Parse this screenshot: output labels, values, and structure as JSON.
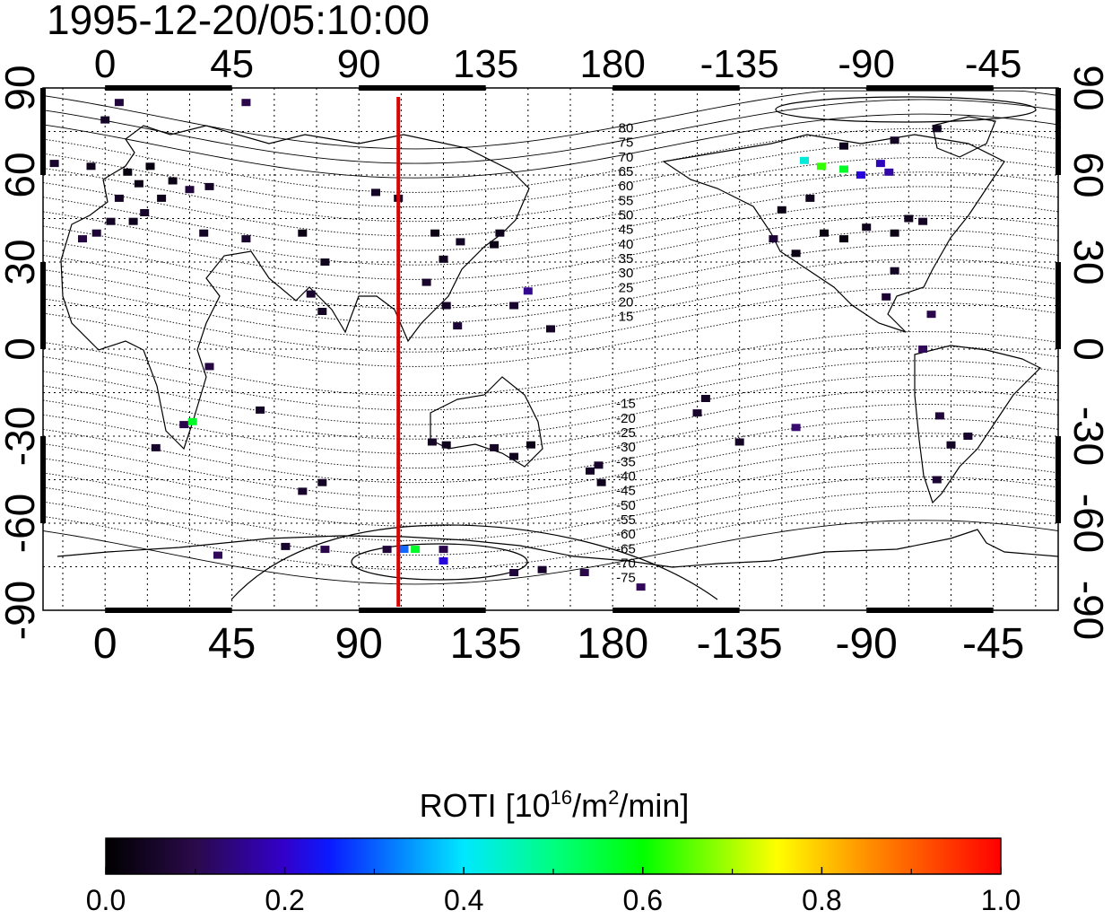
{
  "title": "1995-12-20/05:10:00",
  "axes": {
    "top_lon_ticks": [
      "0",
      "45",
      "90",
      "135",
      "180",
      "-135",
      "-90",
      "-45"
    ],
    "bottom_lon_ticks": [
      "0",
      "45",
      "90",
      "135",
      "180",
      "-135",
      "-90",
      "-45"
    ],
    "lat_ticks": [
      "90",
      "60",
      "30",
      "0",
      "-30",
      "-60",
      "-90"
    ],
    "lon_range": [
      -22,
      338
    ],
    "lat_range": [
      -90,
      90
    ],
    "grid": true
  },
  "contour_labels": {
    "north": [
      "80",
      "75",
      "70",
      "65",
      "60",
      "55",
      "50",
      "45",
      "40",
      "35",
      "30",
      "25",
      "20",
      "15"
    ],
    "south": [
      "-15",
      "-20",
      "-25",
      "-30",
      "-35",
      "-40",
      "-45",
      "-50",
      "-55",
      "-60",
      "-65",
      "-70",
      "-75"
    ]
  },
  "marker_line": {
    "lon": 104,
    "color": "#e00000"
  },
  "colorbar": {
    "label": "ROTI  [10",
    "label_sup1": "16",
    "label_mid": "/m",
    "label_sup2": "2",
    "label_end": "/min]",
    "ticks": [
      "0.0",
      "0.2",
      "0.4",
      "0.6",
      "0.8",
      "1.0"
    ],
    "min": 0.0,
    "max": 1.0,
    "colors": [
      "#000000",
      "#3a0a6a",
      "#2200ff",
      "#00e5ff",
      "#00ff00",
      "#ffff00",
      "#ff8000",
      "#ff0000"
    ]
  },
  "roti_points": [
    {
      "lon": 8,
      "lat": 61,
      "v": 0.02
    },
    {
      "lon": 12,
      "lat": 57,
      "v": 0.03
    },
    {
      "lon": 16,
      "lat": 63,
      "v": 0.02
    },
    {
      "lon": 5,
      "lat": 52,
      "v": 0.05
    },
    {
      "lon": 20,
      "lat": 52,
      "v": 0.04
    },
    {
      "lon": 14,
      "lat": 47,
      "v": 0.06
    },
    {
      "lon": 24,
      "lat": 58,
      "v": 0.03
    },
    {
      "lon": 30,
      "lat": 55,
      "v": 0.08
    },
    {
      "lon": 37,
      "lat": 56,
      "v": 0.05
    },
    {
      "lon": 2,
      "lat": 44,
      "v": 0.05
    },
    {
      "lon": -3,
      "lat": 40,
      "v": 0.07
    },
    {
      "lon": -8,
      "lat": 38,
      "v": 0.09
    },
    {
      "lon": 10,
      "lat": 44,
      "v": 0.04
    },
    {
      "lon": 35,
      "lat": 40,
      "v": 0.05
    },
    {
      "lon": 50,
      "lat": 38,
      "v": 0.06
    },
    {
      "lon": 70,
      "lat": 40,
      "v": 0.03
    },
    {
      "lon": 78,
      "lat": 30,
      "v": 0.04
    },
    {
      "lon": 73,
      "lat": 19,
      "v": 0.06
    },
    {
      "lon": 77,
      "lat": 13,
      "v": 0.05
    },
    {
      "lon": 96,
      "lat": 54,
      "v": 0.05
    },
    {
      "lon": 104,
      "lat": 52,
      "v": 0.06
    },
    {
      "lon": 117,
      "lat": 40,
      "v": 0.03
    },
    {
      "lon": 120,
      "lat": 31,
      "v": 0.04
    },
    {
      "lon": 126,
      "lat": 37,
      "v": 0.05
    },
    {
      "lon": 138,
      "lat": 36,
      "v": 0.03
    },
    {
      "lon": 140,
      "lat": 40,
      "v": 0.04
    },
    {
      "lon": 114,
      "lat": 23,
      "v": 0.06
    },
    {
      "lon": 121,
      "lat": 15,
      "v": 0.05
    },
    {
      "lon": 125,
      "lat": 8,
      "v": 0.07
    },
    {
      "lon": 145,
      "lat": 15,
      "v": 0.06
    },
    {
      "lon": 150,
      "lat": 20,
      "v": 0.18
    },
    {
      "lon": 158,
      "lat": 7,
      "v": 0.05
    },
    {
      "lon": 116,
      "lat": -32,
      "v": 0.05
    },
    {
      "lon": 121,
      "lat": -33,
      "v": 0.04
    },
    {
      "lon": 138,
      "lat": -34,
      "v": 0.05
    },
    {
      "lon": 145,
      "lat": -37,
      "v": 0.04
    },
    {
      "lon": 151,
      "lat": -33,
      "v": 0.03
    },
    {
      "lon": 172,
      "lat": -42,
      "v": 0.05
    },
    {
      "lon": 175,
      "lat": -40,
      "v": 0.06
    },
    {
      "lon": 176,
      "lat": -46,
      "v": 0.04
    },
    {
      "lon": 28,
      "lat": -26,
      "v": 0.1
    },
    {
      "lon": 31,
      "lat": -25,
      "v": 0.55
    },
    {
      "lon": 18,
      "lat": -34,
      "v": 0.06
    },
    {
      "lon": 37,
      "lat": -6,
      "v": 0.09
    },
    {
      "lon": 55,
      "lat": -21,
      "v": 0.05
    },
    {
      "lon": 77,
      "lat": -46,
      "v": 0.05
    },
    {
      "lon": 70,
      "lat": -49,
      "v": 0.06
    },
    {
      "lon": 248,
      "lat": 65,
      "v": 0.45
    },
    {
      "lon": 254,
      "lat": 63,
      "v": 0.6
    },
    {
      "lon": 262,
      "lat": 62,
      "v": 0.55
    },
    {
      "lon": 268,
      "lat": 60,
      "v": 0.25
    },
    {
      "lon": 275,
      "lat": 64,
      "v": 0.22
    },
    {
      "lon": 278,
      "lat": 61,
      "v": 0.2
    },
    {
      "lon": 262,
      "lat": 70,
      "v": 0.04
    },
    {
      "lon": 280,
      "lat": 72,
      "v": 0.05
    },
    {
      "lon": 295,
      "lat": 76,
      "v": 0.04
    },
    {
      "lon": 250,
      "lat": 52,
      "v": 0.04
    },
    {
      "lon": 240,
      "lat": 48,
      "v": 0.03
    },
    {
      "lon": 255,
      "lat": 40,
      "v": 0.02
    },
    {
      "lon": 262,
      "lat": 38,
      "v": 0.02
    },
    {
      "lon": 270,
      "lat": 42,
      "v": 0.04
    },
    {
      "lon": 280,
      "lat": 40,
      "v": 0.03
    },
    {
      "lon": 285,
      "lat": 45,
      "v": 0.04
    },
    {
      "lon": 290,
      "lat": 44,
      "v": 0.05
    },
    {
      "lon": 237,
      "lat": 38,
      "v": 0.07
    },
    {
      "lon": 245,
      "lat": 33,
      "v": 0.03
    },
    {
      "lon": 280,
      "lat": 27,
      "v": 0.05
    },
    {
      "lon": 277,
      "lat": 18,
      "v": 0.07
    },
    {
      "lon": 293,
      "lat": 12,
      "v": 0.1
    },
    {
      "lon": 290,
      "lat": 0,
      "v": 0.12
    },
    {
      "lon": 296,
      "lat": -23,
      "v": 0.08
    },
    {
      "lon": 300,
      "lat": -33,
      "v": 0.05
    },
    {
      "lon": 295,
      "lat": -45,
      "v": 0.07
    },
    {
      "lon": 306,
      "lat": -30,
      "v": 0.06
    },
    {
      "lon": 213,
      "lat": -17,
      "v": 0.05
    },
    {
      "lon": 210,
      "lat": -22,
      "v": 0.06
    },
    {
      "lon": 245,
      "lat": -27,
      "v": 0.15
    },
    {
      "lon": 225,
      "lat": -32,
      "v": 0.05
    },
    {
      "lon": 100,
      "lat": -69,
      "v": 0.08
    },
    {
      "lon": 106,
      "lat": -69,
      "v": 0.35
    },
    {
      "lon": 110,
      "lat": -69,
      "v": 0.55
    },
    {
      "lon": 120,
      "lat": -69,
      "v": 0.1
    },
    {
      "lon": 120,
      "lat": -73,
      "v": 0.25
    },
    {
      "lon": 64,
      "lat": -68,
      "v": 0.06
    },
    {
      "lon": 78,
      "lat": -69,
      "v": 0.1
    },
    {
      "lon": 40,
      "lat": -71,
      "v": 0.12
    },
    {
      "lon": 145,
      "lat": -77,
      "v": 0.08
    },
    {
      "lon": 155,
      "lat": -76,
      "v": 0.06
    },
    {
      "lon": 170,
      "lat": -77,
      "v": 0.1
    },
    {
      "lon": 190,
      "lat": -82,
      "v": 0.12
    },
    {
      "lon": 5,
      "lat": 85,
      "v": 0.08
    },
    {
      "lon": 50,
      "lat": 85,
      "v": 0.1
    },
    {
      "lon": 0,
      "lat": 79,
      "v": 0.05
    },
    {
      "lon": -5,
      "lat": 63,
      "v": 0.04
    },
    {
      "lon": -18,
      "lat": 64,
      "v": 0.06
    }
  ]
}
